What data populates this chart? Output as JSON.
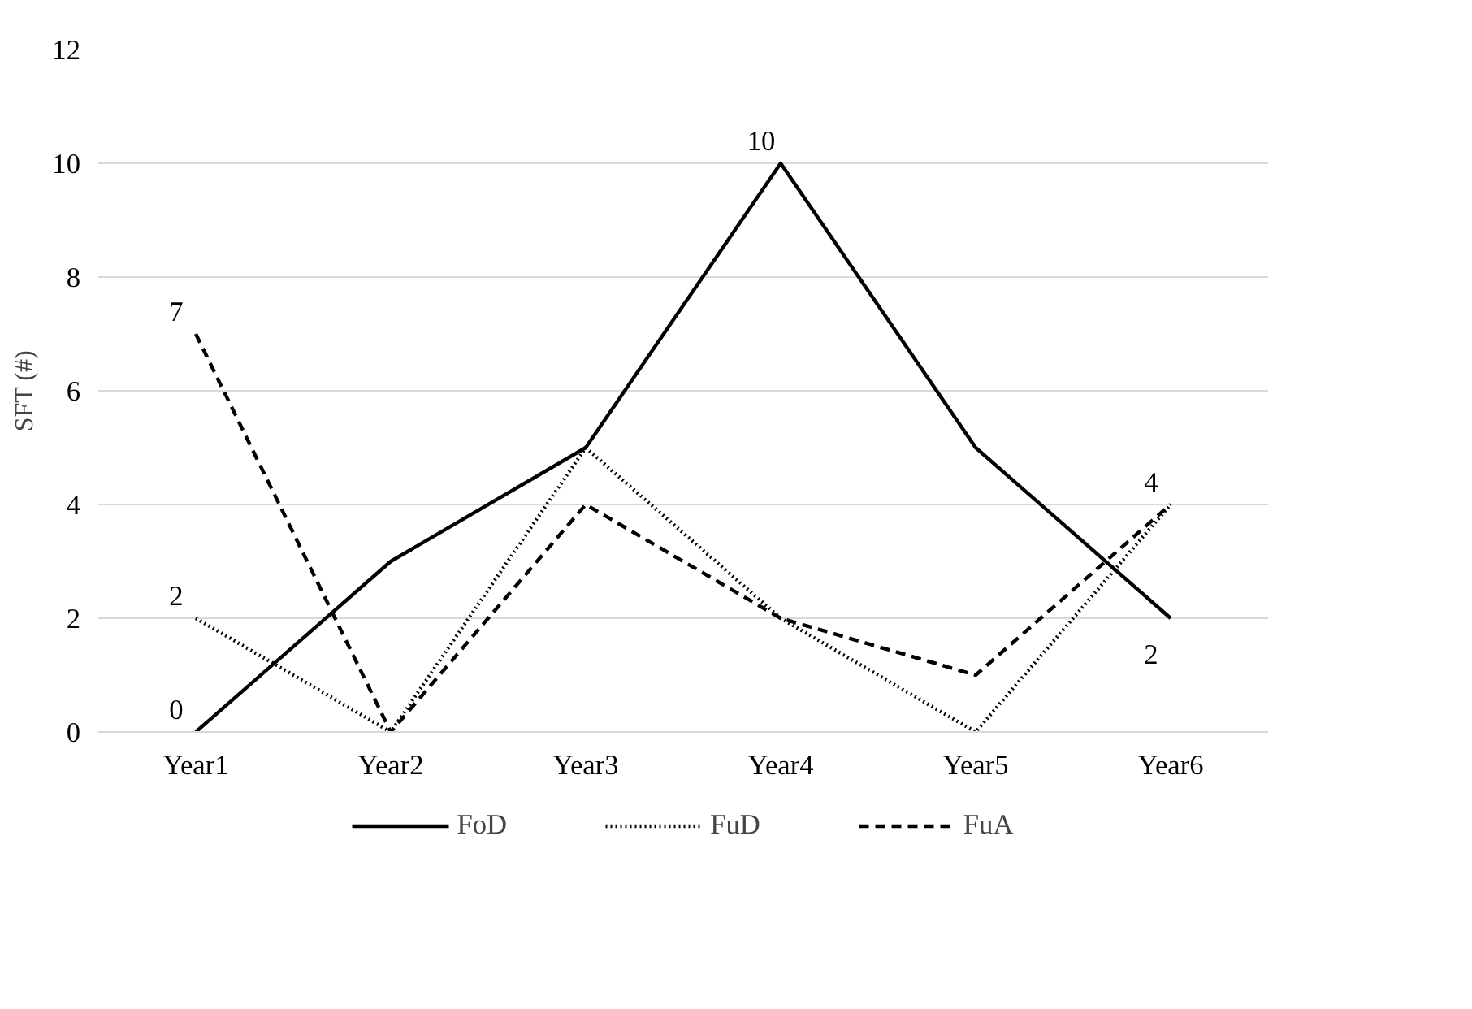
{
  "chart_data": {
    "type": "line",
    "ylabel": "SFT (#)",
    "categories": [
      "Year1",
      "Year2",
      "Year3",
      "Year4",
      "Year5",
      "Year6"
    ],
    "series": [
      {
        "name": "FoD",
        "color": "#000000",
        "line_style": "solid",
        "values": [
          0,
          3,
          5,
          10,
          5,
          2
        ],
        "value_labels": [
          "0",
          null,
          null,
          "10",
          null,
          "2"
        ]
      },
      {
        "name": "FuD",
        "color": "#000000",
        "line_style": "dotted",
        "values": [
          2,
          0,
          5,
          2,
          0,
          4
        ],
        "value_labels": [
          "2",
          null,
          null,
          null,
          null,
          null
        ]
      },
      {
        "name": "FuA",
        "color": "#000000",
        "line_style": "dashed",
        "values": [
          7,
          0,
          4,
          2,
          1,
          4
        ],
        "value_labels": [
          "7",
          null,
          null,
          null,
          null,
          "4"
        ]
      }
    ],
    "ylim": [
      0,
      12
    ],
    "yticks": [
      0,
      2,
      4,
      6,
      8,
      10,
      12
    ],
    "grid": "y",
    "legend": "bottom",
    "marker": "none"
  }
}
